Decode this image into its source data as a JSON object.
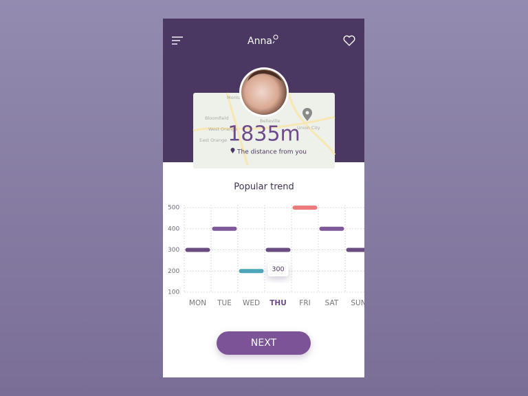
{
  "header": {
    "title": "Anna"
  },
  "map": {
    "labels": [
      "Montclair",
      "Bloomfield",
      "West Orange",
      "Belleville",
      "Union City",
      "East Orange"
    ]
  },
  "profile": {
    "distance": "1835m",
    "distance_label": "The distance from you"
  },
  "chart_data": {
    "type": "marker",
    "title": "Popular trend",
    "categories": [
      "MON",
      "TUE",
      "WED",
      "THU",
      "FRI",
      "SAT",
      "SUN"
    ],
    "values": [
      300,
      400,
      200,
      300,
      500,
      400,
      300
    ],
    "colors": [
      "#6a4d80",
      "#7e5898",
      "#4ea4ba",
      "#6a4d80",
      "#ec7b7b",
      "#7e5898",
      "#6a4d80"
    ],
    "ylim": [
      100,
      500
    ],
    "yticks": [
      100,
      200,
      300,
      400,
      500
    ],
    "grid": true,
    "highlight": 3
  },
  "button": {
    "label": "NEXT"
  }
}
